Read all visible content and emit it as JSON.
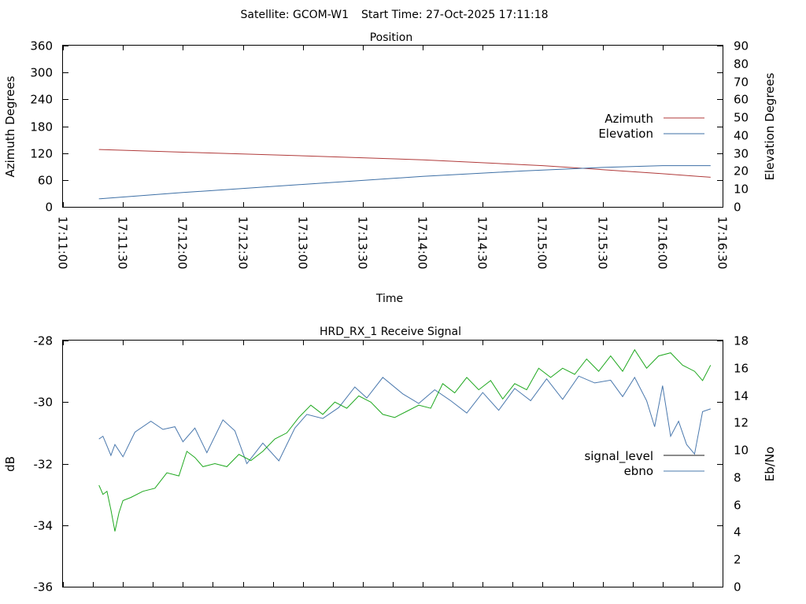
{
  "header": {
    "satellite_text": "Satellite: GCOM-W1",
    "start_text": "Start Time: 27-Oct-2025 17:11:18"
  },
  "chart_data": [
    {
      "type": "line",
      "title": "Position",
      "xlabel": "Time",
      "ylabel": "Azimuth Degrees",
      "y2label": "Elevation Degrees",
      "x_tick_labels": [
        "17:11:00",
        "17:11:30",
        "17:12:00",
        "17:12:30",
        "17:13:00",
        "17:13:30",
        "17:14:00",
        "17:14:30",
        "17:15:00",
        "17:15:30",
        "17:16:00",
        "17:16:30"
      ],
      "xlim_seconds_after_start": [
        0,
        330
      ],
      "ylim": [
        0,
        360
      ],
      "y_ticks": [
        0,
        60,
        120,
        180,
        240,
        300,
        360
      ],
      "y2lim": [
        0,
        90
      ],
      "y2_ticks": [
        0,
        10,
        20,
        30,
        40,
        50,
        60,
        70,
        80,
        90
      ],
      "legend_position": "right",
      "series": [
        {
          "name": "Azimuth",
          "axis": "y",
          "color": "#b03a3a",
          "x_seconds": [
            18,
            60,
            120,
            180,
            240,
            270,
            300,
            324
          ],
          "values": [
            128,
            122,
            114,
            105,
            92,
            83,
            74,
            66
          ]
        },
        {
          "name": "Elevation",
          "axis": "y2",
          "color": "#3d6fa5",
          "x_seconds": [
            18,
            60,
            120,
            180,
            230,
            270,
            300,
            324
          ],
          "values": [
            4.5,
            8,
            12.5,
            17,
            20,
            22,
            23,
            23
          ]
        }
      ]
    },
    {
      "type": "line",
      "title": "HRD_RX_1 Receive Signal",
      "ylabel": "dB",
      "y2label": "Eb/No",
      "ylim": [
        -36,
        -28
      ],
      "y_ticks": [
        -36,
        -34,
        -32,
        -30,
        -28
      ],
      "y2lim": [
        0,
        18
      ],
      "y2_ticks": [
        0,
        2,
        4,
        6,
        8,
        10,
        12,
        14,
        16,
        18
      ],
      "legend_position": "right",
      "x_note": "same time axis as Position panel",
      "series": [
        {
          "name": "signal_level",
          "axis": "y",
          "color": "#1a1a1a",
          "x_seconds": [],
          "values": []
        },
        {
          "name": "ebno",
          "axis": "y2",
          "color": "#4a78ad",
          "x_seconds": [
            18,
            20,
            22,
            24,
            26,
            30,
            36,
            44,
            50,
            56,
            60,
            66,
            72,
            80,
            86,
            92,
            100,
            108,
            116,
            122,
            130,
            138,
            146,
            152,
            160,
            170,
            178,
            186,
            194,
            202,
            210,
            218,
            226,
            234,
            242,
            250,
            258,
            266,
            274,
            280,
            286,
            292,
            296,
            300,
            304,
            308,
            312,
            316,
            320,
            324
          ],
          "values": [
            10.8,
            11.0,
            10.3,
            9.6,
            10.4,
            9.5,
            11.3,
            12.1,
            11.5,
            11.7,
            10.6,
            11.6,
            9.8,
            12.2,
            11.4,
            9.0,
            10.5,
            9.2,
            11.6,
            12.6,
            12.3,
            13.1,
            14.6,
            13.8,
            15.3,
            14.1,
            13.4,
            14.4,
            13.6,
            12.7,
            14.2,
            12.9,
            14.5,
            13.6,
            15.2,
            13.7,
            15.4,
            14.9,
            15.1,
            13.9,
            15.3,
            13.6,
            11.7,
            14.7,
            11.0,
            12.1,
            10.4,
            9.7,
            12.8,
            13.0
          ]
        },
        {
          "name": "",
          "axis": "y",
          "color": "#1fa81f",
          "x_seconds": [
            18,
            20,
            22,
            24,
            26,
            28,
            30,
            34,
            40,
            46,
            52,
            58,
            62,
            66,
            70,
            76,
            82,
            88,
            94,
            100,
            106,
            112,
            118,
            124,
            130,
            136,
            142,
            148,
            154,
            160,
            166,
            172,
            178,
            184,
            190,
            196,
            202,
            208,
            214,
            220,
            226,
            232,
            238,
            244,
            250,
            256,
            262,
            268,
            274,
            280,
            286,
            292,
            298,
            304,
            310,
            316,
            320,
            324
          ],
          "values": [
            -32.7,
            -33.0,
            -32.9,
            -33.5,
            -34.2,
            -33.6,
            -33.2,
            -33.1,
            -32.9,
            -32.8,
            -32.3,
            -32.4,
            -31.6,
            -31.8,
            -32.1,
            -32.0,
            -32.1,
            -31.7,
            -31.9,
            -31.6,
            -31.2,
            -31.0,
            -30.5,
            -30.1,
            -30.4,
            -30.0,
            -30.2,
            -29.8,
            -30.0,
            -30.4,
            -30.5,
            -30.3,
            -30.1,
            -30.2,
            -29.4,
            -29.7,
            -29.2,
            -29.6,
            -29.3,
            -29.9,
            -29.4,
            -29.6,
            -28.9,
            -29.2,
            -28.9,
            -29.1,
            -28.6,
            -29.0,
            -28.5,
            -29.0,
            -28.3,
            -28.9,
            -28.5,
            -28.4,
            -28.8,
            -29.0,
            -29.3,
            -28.8
          ]
        }
      ]
    }
  ]
}
